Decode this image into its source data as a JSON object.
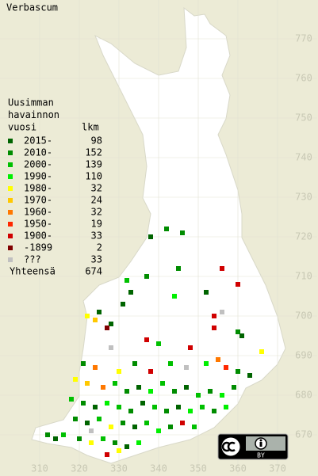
{
  "title": "Verbascum",
  "legend": {
    "heading": [
      "Uusimman",
      "havainnon",
      "vuosi"
    ],
    "count_heading": "lkm",
    "items": [
      {
        "label": "2015-",
        "count": 98,
        "color": "#006400"
      },
      {
        "label": "2010-",
        "count": 152,
        "color": "#008c00"
      },
      {
        "label": "2000-",
        "count": 139,
        "color": "#00c000"
      },
      {
        "label": "1990-",
        "count": 110,
        "color": "#00f000"
      },
      {
        "label": "1980-",
        "count": 32,
        "color": "#ffff00"
      },
      {
        "label": "1970-",
        "count": 24,
        "color": "#ffc800"
      },
      {
        "label": "1960-",
        "count": 32,
        "color": "#ff7800"
      },
      {
        "label": "1950-",
        "count": 19,
        "color": "#ff2800"
      },
      {
        "label": "1900-",
        "count": 33,
        "color": "#d00000"
      },
      {
        "label": "-1899",
        "count": 2,
        "color": "#800000"
      },
      {
        "label": "???",
        "count": 33,
        "color": "#c0c0c0"
      }
    ],
    "total_label": "Yhteensä",
    "total": 674
  },
  "map": {
    "xticks": [
      310,
      320,
      330,
      340,
      350,
      360,
      370
    ],
    "yticks": [
      670,
      680,
      690,
      700,
      710,
      720,
      730,
      740,
      750,
      760,
      770
    ],
    "xlim": [
      300,
      380
    ],
    "ylim": [
      660,
      780
    ]
  },
  "observations": [
    {
      "x": 342,
      "y": 722,
      "c": 1
    },
    {
      "x": 338,
      "y": 720,
      "c": 0
    },
    {
      "x": 346,
      "y": 721,
      "c": 1
    },
    {
      "x": 337,
      "y": 710,
      "c": 1
    },
    {
      "x": 345,
      "y": 712,
      "c": 1
    },
    {
      "x": 331,
      "y": 703,
      "c": 0
    },
    {
      "x": 332,
      "y": 709,
      "c": 2
    },
    {
      "x": 333,
      "y": 706,
      "c": 0
    },
    {
      "x": 325,
      "y": 701,
      "c": 0
    },
    {
      "x": 328,
      "y": 698,
      "c": 0
    },
    {
      "x": 322,
      "y": 700,
      "c": 4
    },
    {
      "x": 324,
      "y": 699,
      "c": 5
    },
    {
      "x": 327,
      "y": 697,
      "c": 9
    },
    {
      "x": 344,
      "y": 705,
      "c": 3
    },
    {
      "x": 354,
      "y": 700,
      "c": 8
    },
    {
      "x": 354,
      "y": 697,
      "c": 8
    },
    {
      "x": 356,
      "y": 701,
      "c": 10
    },
    {
      "x": 360,
      "y": 696,
      "c": 1
    },
    {
      "x": 361,
      "y": 695,
      "c": 0
    },
    {
      "x": 366,
      "y": 691,
      "c": 4
    },
    {
      "x": 348,
      "y": 692,
      "c": 8
    },
    {
      "x": 340,
      "y": 693,
      "c": 2
    },
    {
      "x": 337,
      "y": 694,
      "c": 8
    },
    {
      "x": 352,
      "y": 706,
      "c": 0
    },
    {
      "x": 360,
      "y": 708,
      "c": 8
    },
    {
      "x": 356,
      "y": 712,
      "c": 8
    },
    {
      "x": 328,
      "y": 692,
      "c": 10
    },
    {
      "x": 321,
      "y": 688,
      "c": 1
    },
    {
      "x": 324,
      "y": 687,
      "c": 6
    },
    {
      "x": 330,
      "y": 686,
      "c": 4
    },
    {
      "x": 334,
      "y": 688,
      "c": 1
    },
    {
      "x": 338,
      "y": 686,
      "c": 8
    },
    {
      "x": 343,
      "y": 688,
      "c": 2
    },
    {
      "x": 347,
      "y": 687,
      "c": 10
    },
    {
      "x": 352,
      "y": 688,
      "c": 3
    },
    {
      "x": 355,
      "y": 689,
      "c": 6
    },
    {
      "x": 357,
      "y": 687,
      "c": 7
    },
    {
      "x": 360,
      "y": 686,
      "c": 1
    },
    {
      "x": 363,
      "y": 685,
      "c": 0
    },
    {
      "x": 319,
      "y": 684,
      "c": 4
    },
    {
      "x": 322,
      "y": 683,
      "c": 5
    },
    {
      "x": 326,
      "y": 682,
      "c": 6
    },
    {
      "x": 329,
      "y": 683,
      "c": 2
    },
    {
      "x": 332,
      "y": 681,
      "c": 1
    },
    {
      "x": 335,
      "y": 682,
      "c": 0
    },
    {
      "x": 338,
      "y": 681,
      "c": 3
    },
    {
      "x": 341,
      "y": 683,
      "c": 2
    },
    {
      "x": 344,
      "y": 681,
      "c": 1
    },
    {
      "x": 347,
      "y": 682,
      "c": 0
    },
    {
      "x": 350,
      "y": 680,
      "c": 2
    },
    {
      "x": 353,
      "y": 681,
      "c": 1
    },
    {
      "x": 356,
      "y": 680,
      "c": 3
    },
    {
      "x": 359,
      "y": 682,
      "c": 1
    },
    {
      "x": 318,
      "y": 679,
      "c": 2
    },
    {
      "x": 321,
      "y": 678,
      "c": 1
    },
    {
      "x": 324,
      "y": 677,
      "c": 0
    },
    {
      "x": 327,
      "y": 678,
      "c": 3
    },
    {
      "x": 330,
      "y": 677,
      "c": 2
    },
    {
      "x": 333,
      "y": 676,
      "c": 1
    },
    {
      "x": 336,
      "y": 678,
      "c": 0
    },
    {
      "x": 339,
      "y": 677,
      "c": 2
    },
    {
      "x": 342,
      "y": 676,
      "c": 1
    },
    {
      "x": 345,
      "y": 677,
      "c": 0
    },
    {
      "x": 348,
      "y": 676,
      "c": 3
    },
    {
      "x": 351,
      "y": 677,
      "c": 2
    },
    {
      "x": 354,
      "y": 676,
      "c": 1
    },
    {
      "x": 357,
      "y": 677,
      "c": 3
    },
    {
      "x": 319,
      "y": 674,
      "c": 1
    },
    {
      "x": 322,
      "y": 673,
      "c": 0
    },
    {
      "x": 325,
      "y": 674,
      "c": 2
    },
    {
      "x": 328,
      "y": 672,
      "c": 4
    },
    {
      "x": 331,
      "y": 673,
      "c": 1
    },
    {
      "x": 334,
      "y": 672,
      "c": 0
    },
    {
      "x": 337,
      "y": 673,
      "c": 2
    },
    {
      "x": 340,
      "y": 671,
      "c": 3
    },
    {
      "x": 343,
      "y": 672,
      "c": 1
    },
    {
      "x": 346,
      "y": 673,
      "c": 8
    },
    {
      "x": 349,
      "y": 672,
      "c": 2
    },
    {
      "x": 312,
      "y": 670,
      "c": 1
    },
    {
      "x": 314,
      "y": 669,
      "c": 0
    },
    {
      "x": 316,
      "y": 670,
      "c": 2
    },
    {
      "x": 320,
      "y": 669,
      "c": 1
    },
    {
      "x": 323,
      "y": 668,
      "c": 4
    },
    {
      "x": 326,
      "y": 669,
      "c": 2
    },
    {
      "x": 329,
      "y": 668,
      "c": 1
    },
    {
      "x": 332,
      "y": 667,
      "c": 0
    },
    {
      "x": 335,
      "y": 668,
      "c": 3
    },
    {
      "x": 327,
      "y": 665,
      "c": 8
    },
    {
      "x": 330,
      "y": 666,
      "c": 4
    },
    {
      "x": 323,
      "y": 671,
      "c": 10
    }
  ],
  "badge": {
    "text": "BY"
  }
}
